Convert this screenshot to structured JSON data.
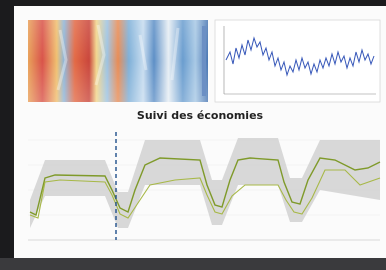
{
  "screen": {
    "chart_title": "Suivi des économies"
  }
}
